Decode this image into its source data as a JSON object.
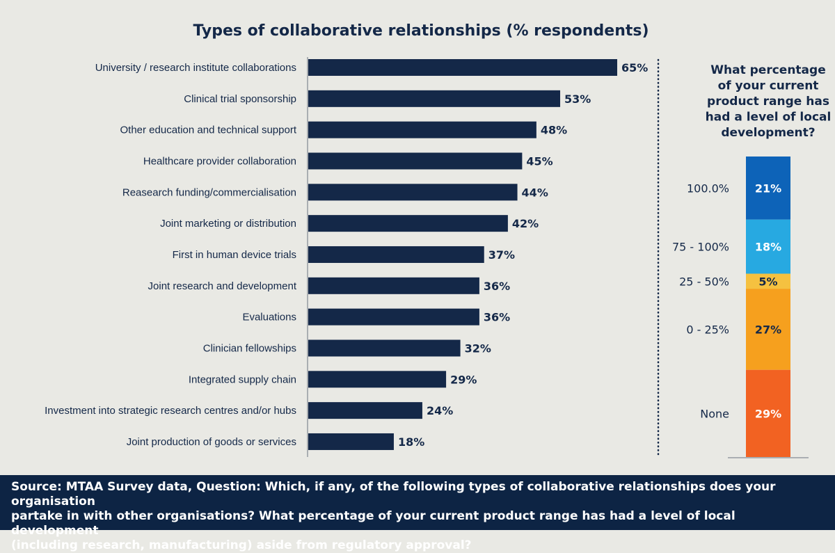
{
  "chart_data": [
    {
      "type": "bar",
      "orientation": "horizontal",
      "title": "Types of collaborative relationships (% respondents)",
      "categories": [
        "University / research institute collaborations",
        "Clinical trial sponsorship",
        "Other education and technical support",
        "Healthcare provider collaboration",
        "Reasearch funding/commercialisation",
        "Joint marketing or distribution",
        "First in human device trials",
        "Joint research and development",
        "Evaluations",
        "Clinician fellowships",
        "Integrated supply chain",
        "Investment into strategic research centres and/or hubs",
        "Joint production of goods or services"
      ],
      "values": [
        65,
        53,
        48,
        45,
        44,
        42,
        37,
        36,
        36,
        32,
        29,
        24,
        18
      ],
      "value_labels": [
        "65%",
        "53%",
        "48%",
        "45%",
        "44%",
        "42%",
        "37%",
        "36%",
        "36%",
        "32%",
        "29%",
        "24%",
        "18%"
      ],
      "xlim": [
        0,
        100
      ],
      "grid": false,
      "bar_color": "#142848"
    },
    {
      "type": "bar",
      "orientation": "stacked-vertical",
      "title_lines": [
        "What percentage",
        "of your current",
        "product range has",
        "had a level of local",
        "development?"
      ],
      "segments": [
        {
          "category": "100.0%",
          "value": 21,
          "label": "21%",
          "color": "#0d63b8",
          "text_color": "#ffffff"
        },
        {
          "category": "75 - 100%",
          "value": 18,
          "label": "18%",
          "color": "#27a9e1",
          "text_color": "#ffffff"
        },
        {
          "category": "25 - 50%",
          "value": 5,
          "label": "5%",
          "color": "#f5c140",
          "text_color": "#142848"
        },
        {
          "category": "0 - 25%",
          "value": 27,
          "label": "27%",
          "color": "#f6a01e",
          "text_color": "#142848"
        },
        {
          "category": "None",
          "value": 29,
          "label": "29%",
          "color": "#f26222",
          "text_color": "#ffffff"
        }
      ],
      "ylim": [
        0,
        100
      ]
    }
  ],
  "footer": {
    "lines": [
      "Source: MTAA Survey data, Question: Which, if any, of the following types of collaborative relationships does your organisation",
      "partake in with other organisations? What percentage of your current product range has had a level of local development",
      "(including research, manufacturing) aside from regulatory approval?"
    ]
  },
  "colors": {
    "text": "#142848",
    "background": "#e9e9e4",
    "footer_bg": "#0d2444"
  }
}
